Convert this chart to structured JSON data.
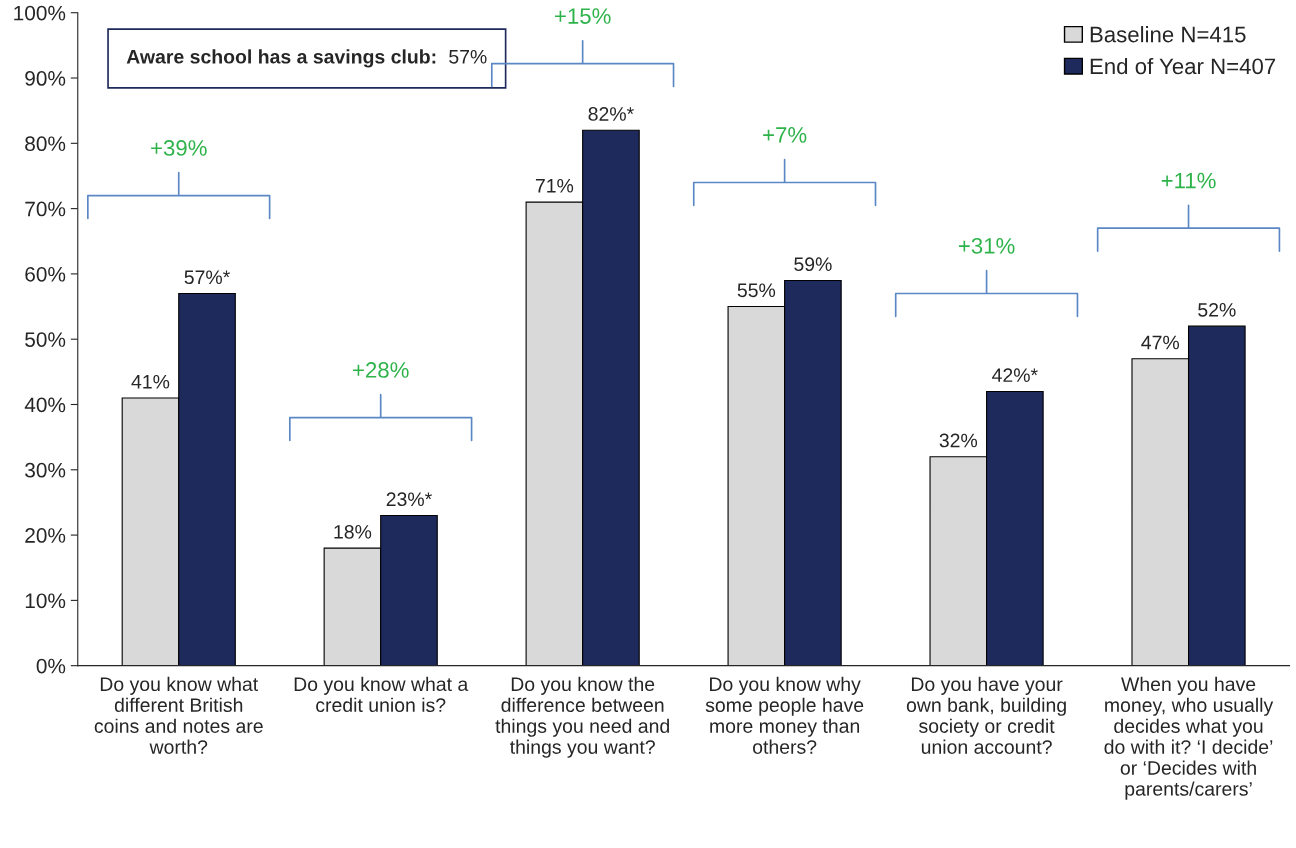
{
  "chart_data": {
    "type": "bar",
    "categories": [
      "Do you know what\ndifferent British\ncoins and notes are\nworth?",
      "Do you know what a\ncredit union is?",
      "Do you know the\ndifference between\nthings you need and\nthings you want?",
      "Do you know why\nsome people have\nmore money than\nothers?",
      "Do you have your\nown bank, building\nsociety or credit\nunion account?",
      "When you have\nmoney, who usually\ndecides what you\ndo with it? ‘I decide’\nor ‘Decides with\nparents/carers’"
    ],
    "series": [
      {
        "name": "Baseline N=415",
        "color": "#d9d9d9",
        "values": [
          41,
          18,
          71,
          55,
          32,
          47
        ],
        "value_labels": [
          "41%",
          "18%",
          "71%",
          "55%",
          "32%",
          "47%"
        ]
      },
      {
        "name": "End of Year N=407",
        "color": "#1f2a5c",
        "values": [
          57,
          23,
          82,
          59,
          42,
          52
        ],
        "value_labels": [
          "57%*",
          "23%*",
          "82%*",
          "59%",
          "42%*",
          "52%"
        ]
      }
    ],
    "ylim": [
      0,
      100
    ],
    "yticks": [
      {
        "value": 0,
        "label": "0%"
      },
      {
        "value": 10,
        "label": "10%"
      },
      {
        "value": 20,
        "label": "20%"
      },
      {
        "value": 30,
        "label": "30%"
      },
      {
        "value": 40,
        "label": "40%"
      },
      {
        "value": 50,
        "label": "50%"
      },
      {
        "value": 60,
        "label": "60%"
      },
      {
        "value": 70,
        "label": "70%"
      },
      {
        "value": 80,
        "label": "80%"
      },
      {
        "value": 90,
        "label": "90%"
      },
      {
        "value": 100,
        "label": "100%"
      }
    ],
    "legend": "top right",
    "grid": false,
    "annotations": [
      "+39%",
      "+28%",
      "+15%",
      "+7%",
      "+31%",
      "+11%",
      "Aware school has a savings club: 57%"
    ]
  }
}
